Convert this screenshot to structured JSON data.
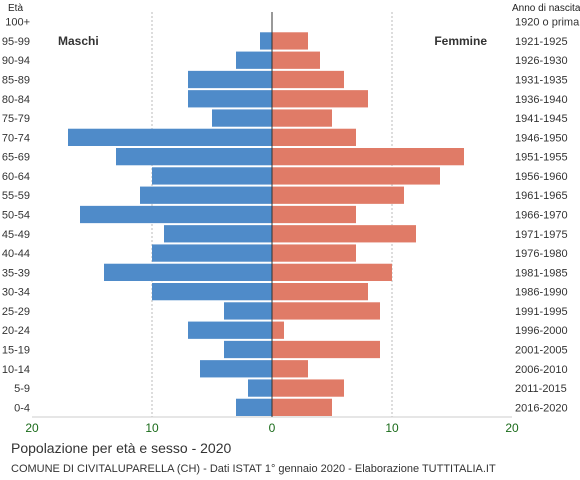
{
  "chart_data": {
    "type": "bar",
    "title": "Popolazione per età e sesso - 2020",
    "source": "COMUNE DI CIVITALUPARELLA (CH) - Dati ISTAT 1° gennaio 2020 - Elaborazione TUTTITALIA.IT",
    "left_header": "Età",
    "right_header": "Anno di nascita",
    "xlim": [
      -20,
      20
    ],
    "x_ticks": [
      "20",
      "10",
      "0",
      "10",
      "20"
    ],
    "grid": true,
    "categories": [
      "100+",
      "95-99",
      "90-94",
      "85-89",
      "80-84",
      "75-79",
      "70-74",
      "65-69",
      "60-64",
      "55-59",
      "50-54",
      "45-49",
      "40-44",
      "35-39",
      "30-34",
      "25-29",
      "20-24",
      "15-19",
      "10-14",
      "5-9",
      "0-4"
    ],
    "birth_years": [
      "1920 o prima",
      "1921-1925",
      "1926-1930",
      "1931-1935",
      "1936-1940",
      "1941-1945",
      "1946-1950",
      "1951-1955",
      "1956-1960",
      "1961-1965",
      "1966-1970",
      "1971-1975",
      "1976-1980",
      "1981-1985",
      "1986-1990",
      "1991-1995",
      "1996-2000",
      "2001-2005",
      "2006-2010",
      "2011-2015",
      "2016-2020"
    ],
    "series": [
      {
        "name": "Maschi",
        "color": "#4f8bc9",
        "values": [
          0,
          1,
          3,
          7,
          7,
          5,
          17,
          13,
          10,
          11,
          16,
          9,
          10,
          14,
          10,
          4,
          7,
          4,
          6,
          2,
          3
        ]
      },
      {
        "name": "Femmine",
        "color": "#e07b67",
        "values": [
          0,
          3,
          4,
          6,
          8,
          5,
          7,
          16,
          14,
          11,
          7,
          12,
          7,
          10,
          8,
          9,
          1,
          9,
          3,
          6,
          5
        ]
      }
    ]
  }
}
